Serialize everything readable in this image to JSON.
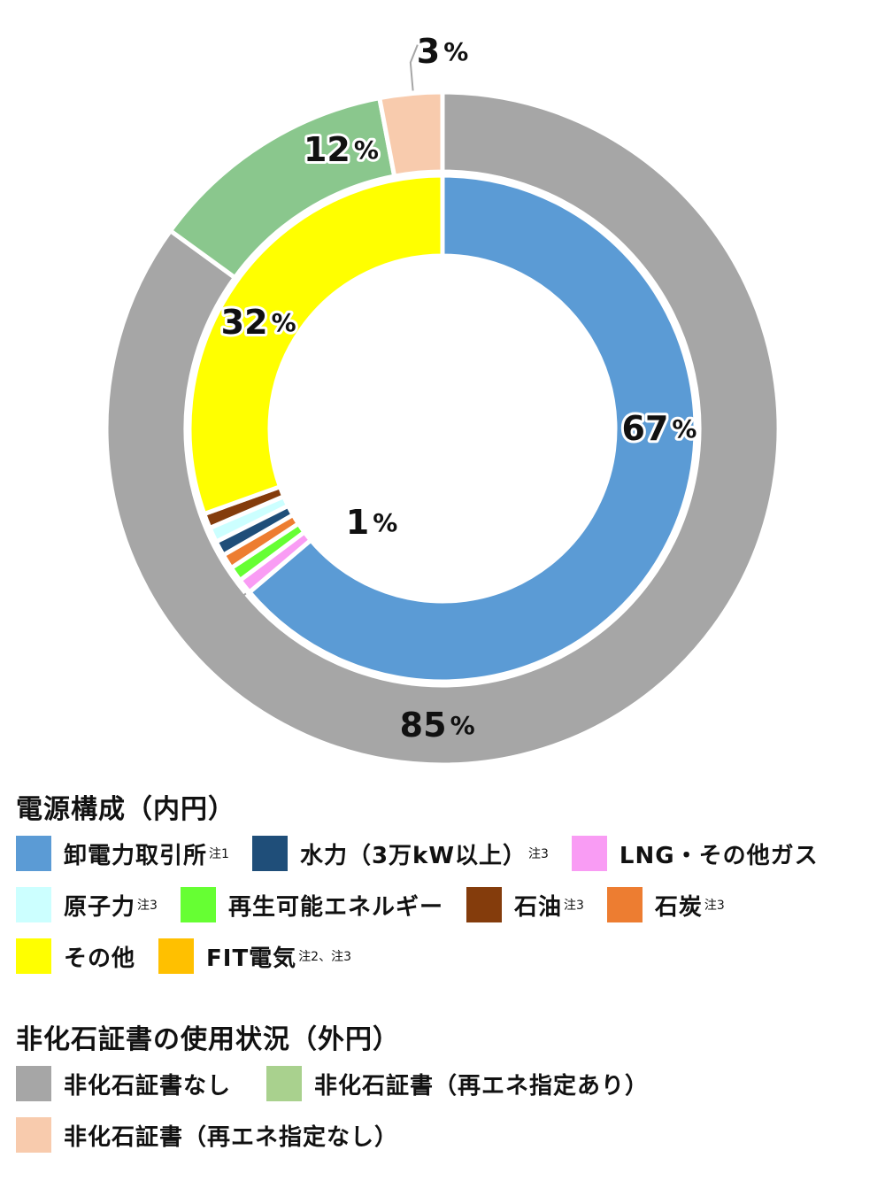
{
  "chart_data": {
    "type": "pie",
    "rings": [
      {
        "ring": "inner",
        "slices": [
          {
            "key": "wholesale",
            "value": 67,
            "label": "67",
            "color": "#5b9bd5"
          },
          {
            "key": "lng",
            "value": 1,
            "label": "1",
            "color": "#f99cf4"
          },
          {
            "key": "renewable",
            "value": 1,
            "label": "",
            "color": "#66ff33"
          },
          {
            "key": "coal",
            "value": 1,
            "label": "",
            "color": "#ed7d31"
          },
          {
            "key": "hydro",
            "value": 1,
            "label": "",
            "color": "#1f4e79"
          },
          {
            "key": "nuclear",
            "value": 1,
            "label": "",
            "color": "#ccffff"
          },
          {
            "key": "oil",
            "value": 1,
            "label": "",
            "color": "#843c0c"
          },
          {
            "key": "other",
            "value": 32,
            "label": "32",
            "color": "#ffff00"
          },
          {
            "key": "fit",
            "value": 0,
            "label": "",
            "color": "#ffc000"
          }
        ]
      },
      {
        "ring": "outer",
        "slices": [
          {
            "key": "none",
            "value": 85,
            "label": "85",
            "color": "#a6a6a6"
          },
          {
            "key": "re_yes",
            "value": 12,
            "label": "12",
            "color": "#8ac78d"
          },
          {
            "key": "re_no",
            "value": 3,
            "label": "3",
            "color": "#f8cbad"
          }
        ]
      }
    ],
    "percent_sign": "%"
  },
  "legend_inner": {
    "title": "電源構成（内円）",
    "items": [
      {
        "label": "卸電力取引所",
        "note": "注1",
        "color": "#5b9bd5"
      },
      {
        "label": "水力（3万kW以上）",
        "note": "注3",
        "color": "#1f4e79"
      },
      {
        "label": "LNG・その他ガス",
        "note": "",
        "color": "#f99cf4"
      },
      {
        "label": "原子力",
        "note": "注3",
        "color": "#ccffff"
      },
      {
        "label": "再生可能エネルギー",
        "note": "",
        "color": "#66ff33"
      },
      {
        "label": "石油",
        "note": "注3",
        "color": "#843c0c"
      },
      {
        "label": "石炭",
        "note": "注3",
        "color": "#ed7d31"
      },
      {
        "label": "その他",
        "note": "",
        "color": "#ffff00"
      },
      {
        "label": "FIT電気",
        "note": "注2、注3",
        "color": "#ffc000"
      }
    ]
  },
  "legend_outer": {
    "title": "非化石証書の使用状況（外円）",
    "items": [
      {
        "label": "非化石証書なし",
        "note": "",
        "color": "#a6a6a6"
      },
      {
        "label": "非化石証書（再エネ指定あり）",
        "note": "",
        "color": "#a9d18e"
      },
      {
        "label": "非化石証書（再エネ指定なし）",
        "note": "",
        "color": "#f8cbad"
      }
    ]
  }
}
